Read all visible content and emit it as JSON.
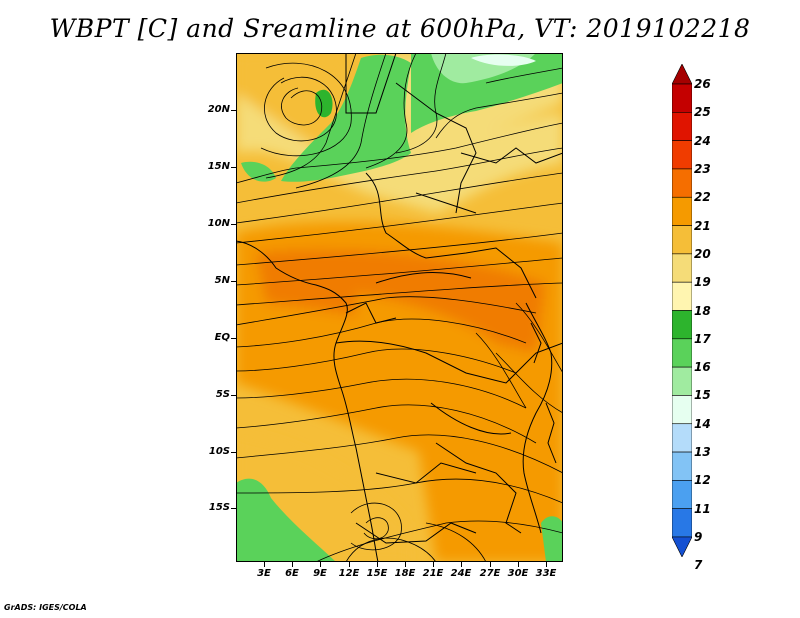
{
  "title": "WBPT [C] and Sreamline at 600hPa, VT: 2019102218",
  "credit": "GrADS: IGES/COLA",
  "lat_labels": [
    "20N",
    "15N",
    "10N",
    "5N",
    "EQ",
    "5S",
    "10S",
    "15S"
  ],
  "lon_labels": [
    "3E",
    "6E",
    "9E",
    "12E",
    "15E",
    "18E",
    "21E",
    "24E",
    "27E",
    "30E",
    "33E"
  ],
  "colorbar": {
    "levels": [
      "26",
      "25",
      "24",
      "23",
      "22",
      "21",
      "20",
      "19",
      "18",
      "17",
      "16",
      "15",
      "14",
      "13",
      "12",
      "11",
      "9",
      "7"
    ],
    "colors": [
      "#a50000",
      "#c40000",
      "#e01400",
      "#f03c00",
      "#f56e00",
      "#f59a00",
      "#f5be38",
      "#f5dc78",
      "#fff5b0",
      "#2db42d",
      "#5ad25a",
      "#a0eba0",
      "#e6fff0",
      "#b4dcfa",
      "#82c3f5",
      "#4ba0f0",
      "#2878e6",
      "#1450d2"
    ]
  }
}
